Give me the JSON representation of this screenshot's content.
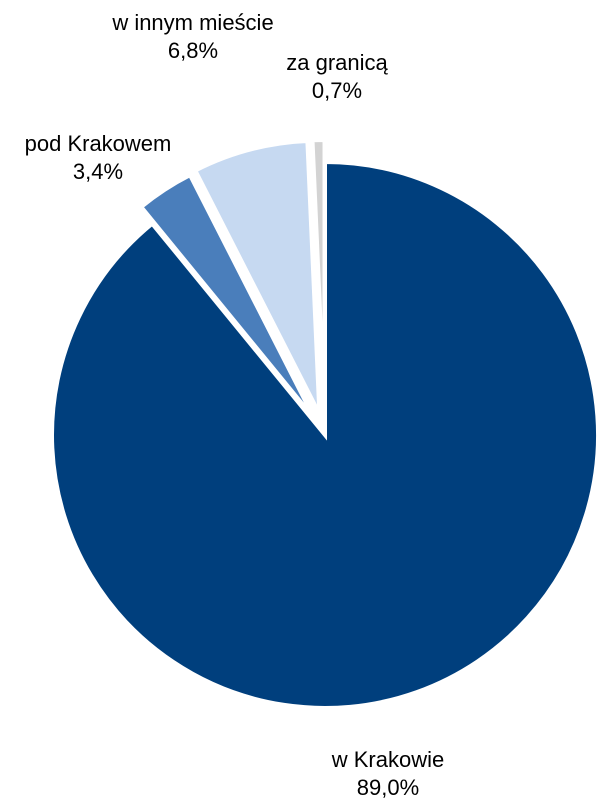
{
  "chart_data": {
    "type": "pie",
    "title": "",
    "slices": [
      {
        "label": "w Krakowie",
        "value": 89.0,
        "value_label": "89,0%",
        "color": "#003F7D"
      },
      {
        "label": "pod Krakowem",
        "value": 3.4,
        "value_label": "3,4%",
        "color": "#4A7EBB"
      },
      {
        "label": "w innym mieście",
        "value": 6.8,
        "value_label": "6,8%",
        "color": "#C6D9F1"
      },
      {
        "label": "za granicą",
        "value": 0.7,
        "value_label": "0,7%",
        "color": "#D3D3D3"
      }
    ]
  }
}
